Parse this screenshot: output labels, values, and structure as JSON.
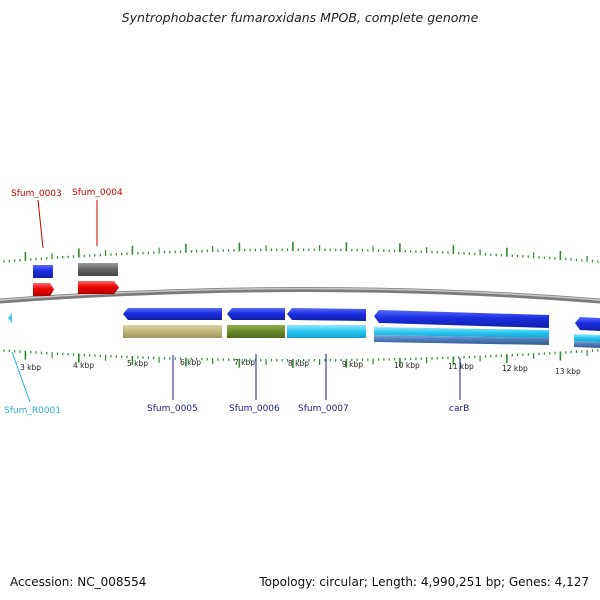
{
  "title": "Syntrophobacter fumaroxidans MPOB, complete genome",
  "footer": {
    "accession": "Accession: NC_008554",
    "summary": "Topology: circular; Length: 4,990,251 bp; Genes: 4,127"
  },
  "colors": {
    "backbone": "#8a8a8a",
    "tick": "#2f8a2f",
    "label_red": "#cc0000",
    "label_blue": "#1b1b8f",
    "label_cyan": "#2ab0d0"
  },
  "scale_labels": [
    "3 kbp",
    "4 kbp",
    "5 kbp",
    "6 kbp",
    "7 kbp",
    "8 kbp",
    "9 kbp",
    "10 kbp",
    "11 kbp",
    "12 kbp",
    "13 kbp"
  ],
  "gene_labels": [
    {
      "id": "Sfum_0003",
      "color": "red"
    },
    {
      "id": "Sfum_0004",
      "color": "red"
    },
    {
      "id": "Sfum_R0001",
      "color": "cyan"
    },
    {
      "id": "Sfum_0005",
      "color": "blue"
    },
    {
      "id": "Sfum_0006",
      "color": "blue"
    },
    {
      "id": "Sfum_0007",
      "color": "blue"
    },
    {
      "id": "carB",
      "color": "blue"
    }
  ]
}
